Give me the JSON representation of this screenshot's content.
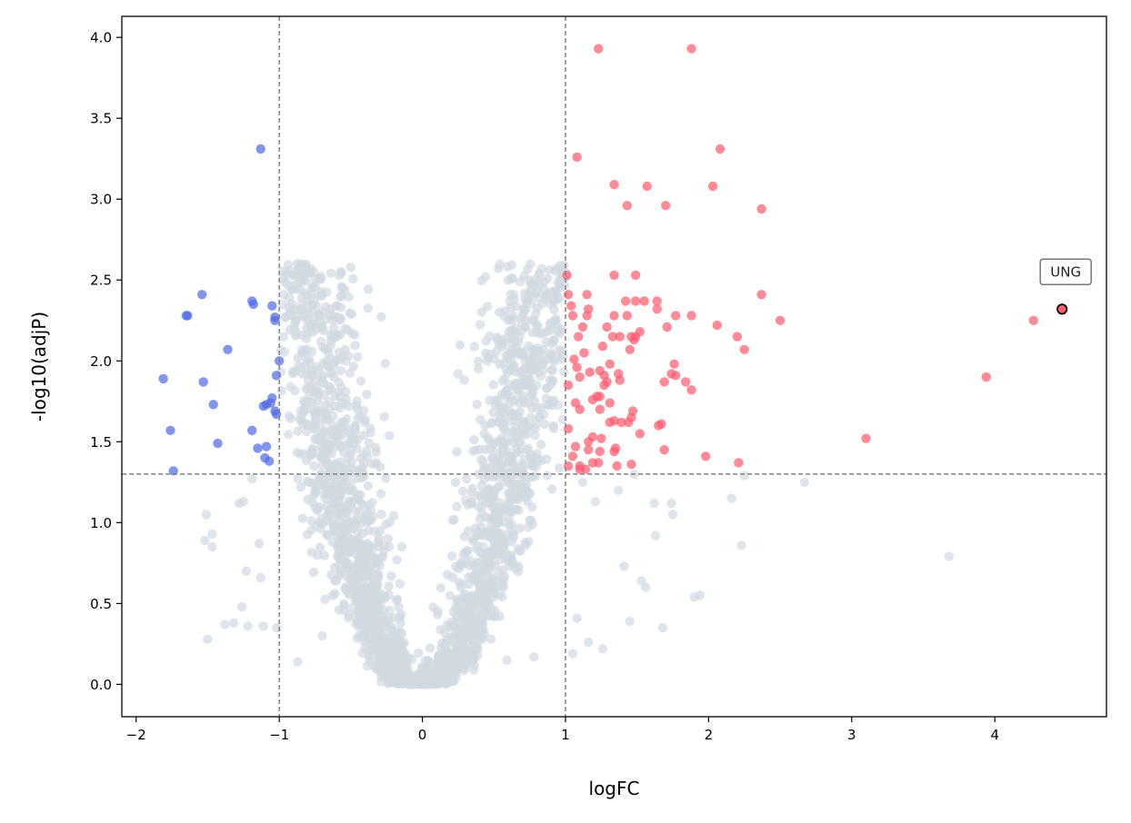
{
  "chart_data": {
    "type": "scatter",
    "title": "",
    "xlabel": "logFC",
    "ylabel": "-log10(adjP)",
    "xlim": [
      -2.1,
      4.78
    ],
    "ylim": [
      -0.2,
      4.13
    ],
    "xticks": [
      -2,
      -1,
      0,
      1,
      2,
      3,
      4
    ],
    "yticks": [
      0.0,
      0.5,
      1.0,
      1.5,
      2.0,
      2.5,
      3.0,
      3.5,
      4.0
    ],
    "xtick_labels": [
      "−2",
      "−1",
      "0",
      "1",
      "2",
      "3",
      "4"
    ],
    "ytick_labels": [
      "0.0",
      "0.5",
      "1.0",
      "1.5",
      "2.0",
      "2.5",
      "3.0",
      "3.5",
      "4.0"
    ],
    "grid": false,
    "thresholds": {
      "logfc": [
        -1,
        1
      ],
      "neg_log10_adjp": 1.3
    },
    "colors": {
      "down": "#4f6ae6",
      "up": "#ff5a6e",
      "ns": "#d2dae1",
      "threshold": "#808080",
      "highlight_edge": "#000000"
    },
    "series": [
      {
        "category": "down",
        "points": [
          [
            -1.13,
            3.31
          ],
          [
            -1.54,
            2.41
          ],
          [
            -1.65,
            2.28
          ],
          [
            -1.64,
            2.28
          ],
          [
            -1.19,
            2.37
          ],
          [
            -1.18,
            2.35
          ],
          [
            -1.05,
            2.34
          ],
          [
            -1.03,
            2.27
          ],
          [
            -1.03,
            2.25
          ],
          [
            -1.36,
            2.07
          ],
          [
            -1.0,
            2.0
          ],
          [
            -1.02,
            1.91
          ],
          [
            -1.81,
            1.89
          ],
          [
            -1.53,
            1.87
          ],
          [
            -1.46,
            1.73
          ],
          [
            -1.05,
            1.77
          ],
          [
            -1.06,
            1.74
          ],
          [
            -1.09,
            1.73
          ],
          [
            -1.11,
            1.72
          ],
          [
            -1.03,
            1.69
          ],
          [
            -1.02,
            1.67
          ],
          [
            -1.76,
            1.57
          ],
          [
            -1.19,
            1.57
          ],
          [
            -1.43,
            1.49
          ],
          [
            -1.09,
            1.47
          ],
          [
            -1.15,
            1.46
          ],
          [
            -1.1,
            1.4
          ],
          [
            -1.07,
            1.38
          ],
          [
            -1.74,
            1.32
          ]
        ]
      },
      {
        "category": "up",
        "points": [
          [
            1.23,
            3.93
          ],
          [
            1.88,
            3.93
          ],
          [
            2.08,
            3.31
          ],
          [
            1.08,
            3.26
          ],
          [
            1.34,
            3.09
          ],
          [
            1.57,
            3.08
          ],
          [
            2.03,
            3.08
          ],
          [
            1.43,
            2.96
          ],
          [
            1.7,
            2.96
          ],
          [
            2.37,
            2.94
          ],
          [
            1.01,
            2.53
          ],
          [
            1.34,
            2.53
          ],
          [
            1.49,
            2.53
          ],
          [
            2.37,
            2.41
          ],
          [
            1.02,
            2.41
          ],
          [
            1.15,
            2.41
          ],
          [
            1.42,
            2.37
          ],
          [
            1.49,
            2.37
          ],
          [
            1.55,
            2.37
          ],
          [
            1.64,
            2.37
          ],
          [
            1.04,
            2.34
          ],
          [
            1.16,
            2.32
          ],
          [
            1.64,
            2.32
          ],
          [
            1.05,
            2.28
          ],
          [
            1.15,
            2.28
          ],
          [
            1.34,
            2.28
          ],
          [
            1.43,
            2.28
          ],
          [
            1.77,
            2.28
          ],
          [
            1.88,
            2.28
          ],
          [
            2.5,
            2.25
          ],
          [
            4.27,
            2.25
          ],
          [
            1.52,
            2.18
          ],
          [
            2.06,
            2.22
          ],
          [
            1.12,
            2.21
          ],
          [
            1.29,
            2.21
          ],
          [
            1.71,
            2.21
          ],
          [
            1.09,
            2.15
          ],
          [
            1.33,
            2.15
          ],
          [
            1.38,
            2.15
          ],
          [
            1.46,
            2.15
          ],
          [
            1.49,
            2.15
          ],
          [
            2.2,
            2.15
          ],
          [
            1.48,
            2.13
          ],
          [
            1.26,
            2.09
          ],
          [
            1.13,
            2.05
          ],
          [
            1.45,
            2.07
          ],
          [
            2.25,
            2.07
          ],
          [
            1.06,
            2.01
          ],
          [
            1.31,
            1.98
          ],
          [
            1.76,
            1.98
          ],
          [
            1.08,
            1.96
          ],
          [
            1.24,
            1.94
          ],
          [
            1.37,
            1.92
          ],
          [
            1.74,
            1.92
          ],
          [
            1.77,
            1.91
          ],
          [
            1.1,
            1.9
          ],
          [
            1.17,
            1.93
          ],
          [
            1.27,
            1.91
          ],
          [
            1.02,
            1.85
          ],
          [
            1.29,
            1.87
          ],
          [
            1.27,
            1.85
          ],
          [
            1.69,
            1.87
          ],
          [
            1.84,
            1.87
          ],
          [
            1.88,
            1.82
          ],
          [
            3.94,
            1.9
          ],
          [
            1.38,
            1.88
          ],
          [
            1.22,
            1.78
          ],
          [
            1.24,
            1.78
          ],
          [
            1.19,
            1.76
          ],
          [
            1.31,
            1.74
          ],
          [
            1.07,
            1.74
          ],
          [
            1.1,
            1.7
          ],
          [
            1.24,
            1.7
          ],
          [
            1.47,
            1.69
          ],
          [
            1.46,
            1.65
          ],
          [
            1.34,
            1.63
          ],
          [
            1.39,
            1.62
          ],
          [
            1.44,
            1.62
          ],
          [
            1.31,
            1.62
          ],
          [
            1.65,
            1.6
          ],
          [
            1.67,
            1.61
          ],
          [
            1.02,
            1.58
          ],
          [
            1.52,
            1.55
          ],
          [
            3.1,
            1.52
          ],
          [
            1.19,
            1.53
          ],
          [
            1.25,
            1.52
          ],
          [
            1.16,
            1.5
          ],
          [
            1.07,
            1.47
          ],
          [
            1.35,
            1.46
          ],
          [
            1.16,
            1.45
          ],
          [
            1.34,
            1.44
          ],
          [
            1.69,
            1.45
          ],
          [
            1.24,
            1.44
          ],
          [
            1.98,
            1.41
          ],
          [
            1.05,
            1.41
          ],
          [
            1.19,
            1.37
          ],
          [
            1.23,
            1.37
          ],
          [
            1.46,
            1.36
          ],
          [
            1.36,
            1.35
          ],
          [
            2.21,
            1.37
          ],
          [
            1.1,
            1.35
          ],
          [
            1.1,
            1.33
          ],
          [
            1.02,
            1.35
          ],
          [
            1.14,
            1.33
          ]
        ]
      },
      {
        "category": "highlight",
        "points": [
          [
            4.47,
            2.32
          ]
        ]
      }
    ],
    "annotations": [
      {
        "text": "UNG",
        "x": 4.47,
        "y": 2.32
      }
    ],
    "background_scatter": {
      "category": "ns",
      "description_params": {
        "count": 2400,
        "seed": 7,
        "width_scale": 0.52,
        "max_y": 2.6
      },
      "extra_points": [
        [
          -0.85,
          2.6
        ],
        [
          -0.82,
          2.59
        ],
        [
          -0.83,
          2.53
        ],
        [
          -0.77,
          2.41
        ],
        [
          -0.7,
          2.41
        ],
        [
          -0.97,
          2.41
        ],
        [
          -0.84,
          2.32
        ],
        [
          -0.63,
          2.28
        ],
        [
          -0.74,
          2.34
        ],
        [
          0.98,
          2.53
        ],
        [
          1.0,
          2.52
        ],
        [
          0.96,
          2.47
        ],
        [
          0.92,
          2.43
        ],
        [
          0.87,
          2.41
        ],
        [
          0.94,
          2.41
        ],
        [
          0.72,
          2.21
        ],
        [
          0.92,
          2.13
        ],
        [
          0.9,
          2.05
        ],
        [
          0.78,
          2.06
        ],
        [
          0.75,
          2.0
        ],
        [
          0.62,
          2.0
        ],
        [
          1.12,
          1.25
        ],
        [
          1.21,
          1.13
        ],
        [
          1.37,
          1.2
        ],
        [
          1.48,
          1.3
        ],
        [
          1.62,
          1.12
        ],
        [
          1.75,
          1.05
        ],
        [
          1.74,
          1.12
        ],
        [
          2.16,
          1.15
        ],
        [
          2.25,
          1.29
        ],
        [
          2.67,
          1.25
        ],
        [
          3.68,
          0.79
        ],
        [
          2.23,
          0.86
        ],
        [
          1.9,
          0.54
        ],
        [
          1.94,
          0.55
        ],
        [
          1.68,
          0.35
        ],
        [
          1.45,
          0.39
        ],
        [
          1.26,
          0.22
        ],
        [
          1.16,
          0.26
        ],
        [
          1.05,
          0.19
        ],
        [
          1.08,
          0.41
        ],
        [
          1.56,
          0.6
        ],
        [
          1.53,
          0.64
        ],
        [
          1.63,
          0.92
        ],
        [
          1.41,
          0.73
        ],
        [
          -1.19,
          1.27
        ],
        [
          -1.25,
          1.13
        ],
        [
          -1.28,
          1.12
        ],
        [
          -1.51,
          1.05
        ],
        [
          -1.52,
          0.89
        ],
        [
          -1.47,
          0.85
        ],
        [
          -1.47,
          0.93
        ],
        [
          -1.23,
          0.7
        ],
        [
          -1.26,
          0.48
        ],
        [
          -1.38,
          0.37
        ],
        [
          -1.32,
          0.38
        ],
        [
          -1.5,
          0.28
        ],
        [
          -1.22,
          0.36
        ],
        [
          -1.11,
          0.36
        ],
        [
          -1.13,
          0.66
        ],
        [
          -1.14,
          0.87
        ],
        [
          -1.02,
          0.35
        ],
        [
          -0.87,
          0.14
        ],
        [
          -0.7,
          0.3
        ],
        [
          0.78,
          0.17
        ],
        [
          0.59,
          0.15
        ],
        [
          0.31,
          0.13
        ],
        [
          0.48,
          0.28
        ]
      ]
    }
  }
}
